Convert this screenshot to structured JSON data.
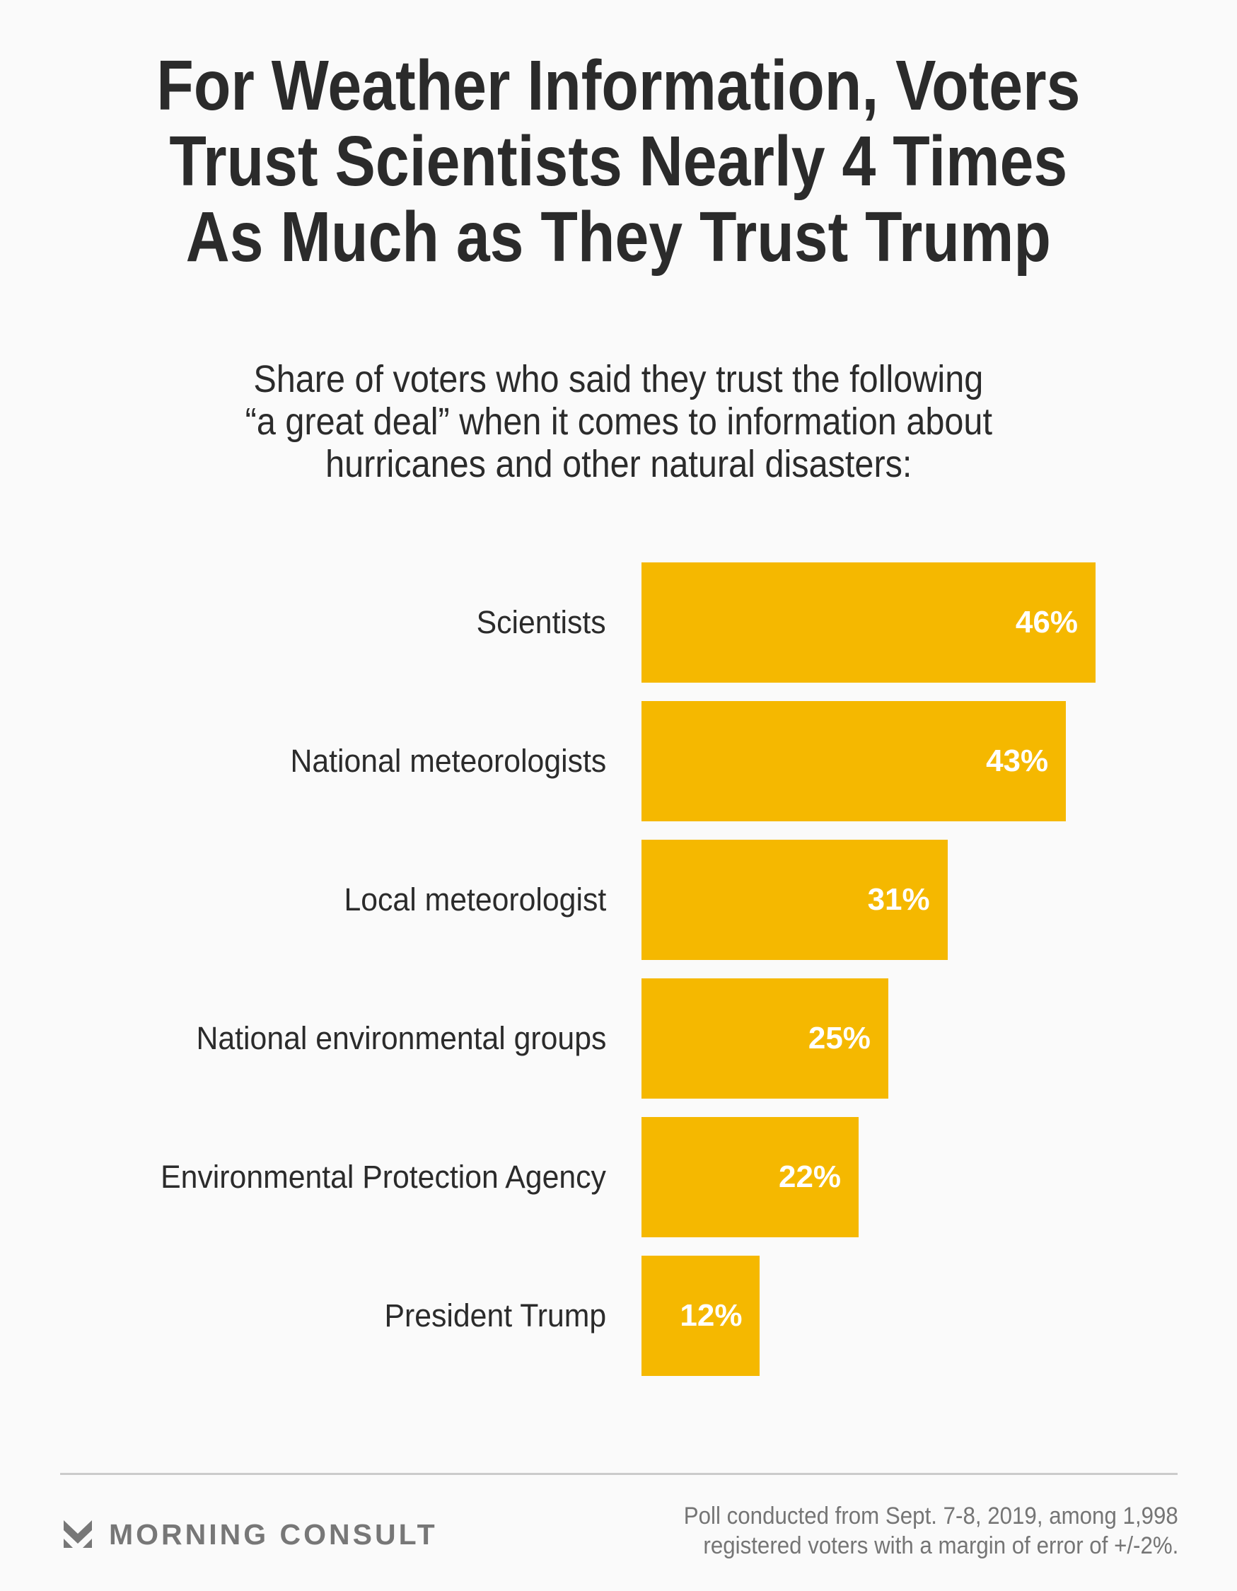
{
  "title_lines": [
    "For Weather Information, Voters",
    "Trust Scientists Nearly 4 Times",
    "As Much as They Trust Trump"
  ],
  "subtitle_lines": [
    "Share of voters who said they trust the following",
    "“a great deal” when it comes to information about",
    "hurricanes and other natural disasters:"
  ],
  "colors": {
    "bar": "#F5B800",
    "text": "#2b2b2b",
    "value_label": "#ffffff",
    "footer_text": "#757575",
    "logo": "#777777",
    "divider": "#cbcbcb",
    "background": "#fafafa"
  },
  "chart_data": {
    "type": "bar",
    "orientation": "horizontal",
    "title": "For Weather Information, Voters Trust Scientists Nearly 4 Times As Much as They Trust Trump",
    "subtitle": "Share of voters who said they trust the following “a great deal” when it comes to information about hurricanes and other natural disasters:",
    "categories": [
      "Scientists",
      "National meteorologists",
      "Local meteorologist",
      "National environmental groups",
      "Environmental Protection Agency",
      "President Trump"
    ],
    "values": [
      46,
      43,
      31,
      25,
      22,
      12
    ],
    "value_labels": [
      "46%",
      "43%",
      "31%",
      "25%",
      "22%",
      "12%"
    ],
    "unit": "%",
    "xlabel": "",
    "ylabel": "",
    "xlim": [
      0,
      46
    ],
    "grid": false,
    "legend": "none"
  },
  "footer": {
    "brand": "MORNING CONSULT",
    "brand_icon": "morning-consult-chevron-logo",
    "note_lines": [
      "Poll conducted from Sept. 7-8, 2019, among 1,998",
      "registered voters with a margin of error of +/-2%."
    ]
  }
}
